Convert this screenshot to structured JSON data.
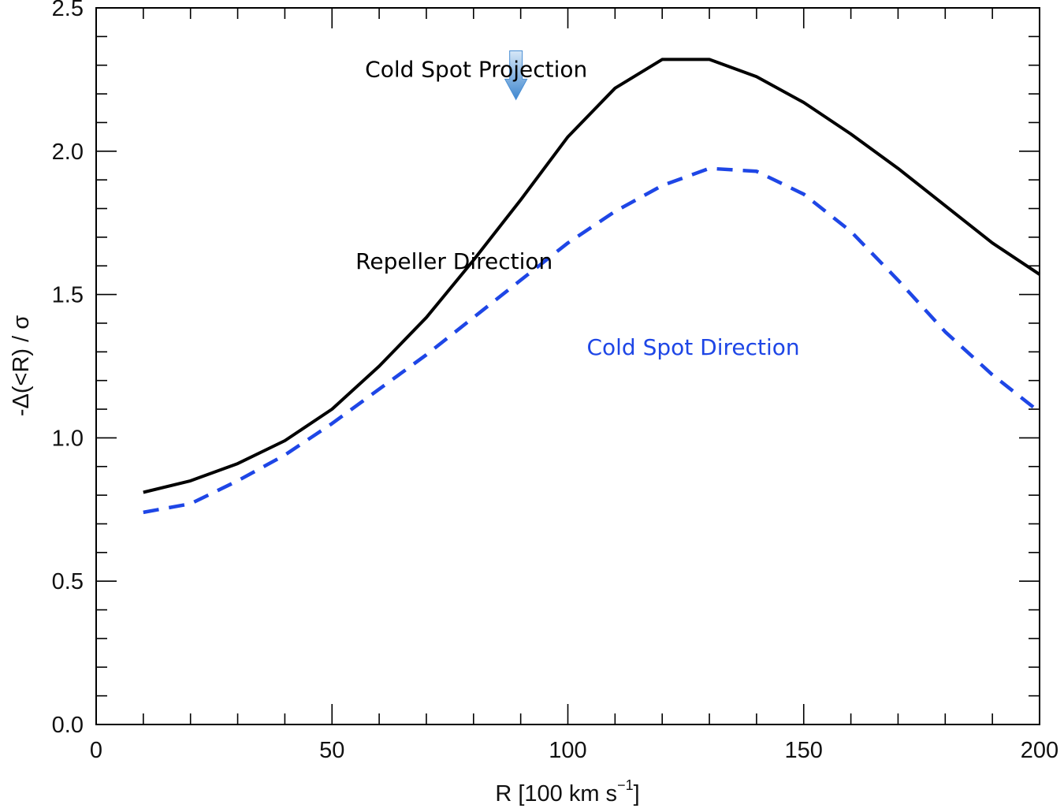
{
  "chart_data": {
    "type": "line",
    "title": "",
    "xlabel": "R [100 km s",
    "xlabel_sup": "−1",
    "xlabel_close": "]",
    "ylabel": "-Δ(<R) / σ",
    "xlim": [
      0,
      200
    ],
    "ylim": [
      0.0,
      2.5
    ],
    "x_ticks": [
      0,
      50,
      100,
      150,
      200
    ],
    "x_tick_labels": [
      "0",
      "50",
      "100",
      "150",
      "200"
    ],
    "y_ticks": [
      0.0,
      0.5,
      1.0,
      1.5,
      2.0,
      2.5
    ],
    "y_tick_labels": [
      "0.0",
      "0.5",
      "1.0",
      "1.5",
      "2.0",
      "2.5"
    ],
    "x_minor_step": 10,
    "y_minor_step": 0.1,
    "grid": false,
    "series": [
      {
        "name": "Repeller Direction",
        "style": "solid",
        "color": "#000000",
        "x": [
          10,
          20,
          30,
          40,
          50,
          60,
          70,
          80,
          90,
          100,
          110,
          120,
          130,
          140,
          150,
          160,
          170,
          180,
          190,
          200
        ],
        "values": [
          0.81,
          0.85,
          0.91,
          0.99,
          1.1,
          1.25,
          1.42,
          1.62,
          1.83,
          2.05,
          2.22,
          2.32,
          2.32,
          2.26,
          2.17,
          2.06,
          1.94,
          1.81,
          1.68,
          1.57
        ]
      },
      {
        "name": "Cold Spot Direction",
        "style": "dashed",
        "color": "#1e46e6",
        "x": [
          10,
          20,
          30,
          40,
          50,
          60,
          70,
          80,
          90,
          100,
          110,
          120,
          130,
          140,
          150,
          160,
          170,
          180,
          190,
          200
        ],
        "values": [
          0.74,
          0.77,
          0.85,
          0.94,
          1.05,
          1.17,
          1.29,
          1.42,
          1.55,
          1.68,
          1.79,
          1.88,
          1.94,
          1.93,
          1.85,
          1.72,
          1.55,
          1.37,
          1.22,
          1.09
        ]
      }
    ],
    "annotations": [
      {
        "text": "Cold Spot Projection",
        "x": 57,
        "y": 2.26,
        "color": "#000000"
      },
      {
        "text": "Repeller Direction",
        "x": 55,
        "y": 1.59,
        "color": "#000000"
      },
      {
        "text": "Cold Spot Direction",
        "x": 104,
        "y": 1.29,
        "color": "#1e46e6"
      }
    ],
    "arrow": {
      "label": "Cold Spot Projection",
      "x": 89,
      "y_top": 2.35,
      "y_tip": 2.18,
      "color": "#5b9bd5"
    }
  }
}
